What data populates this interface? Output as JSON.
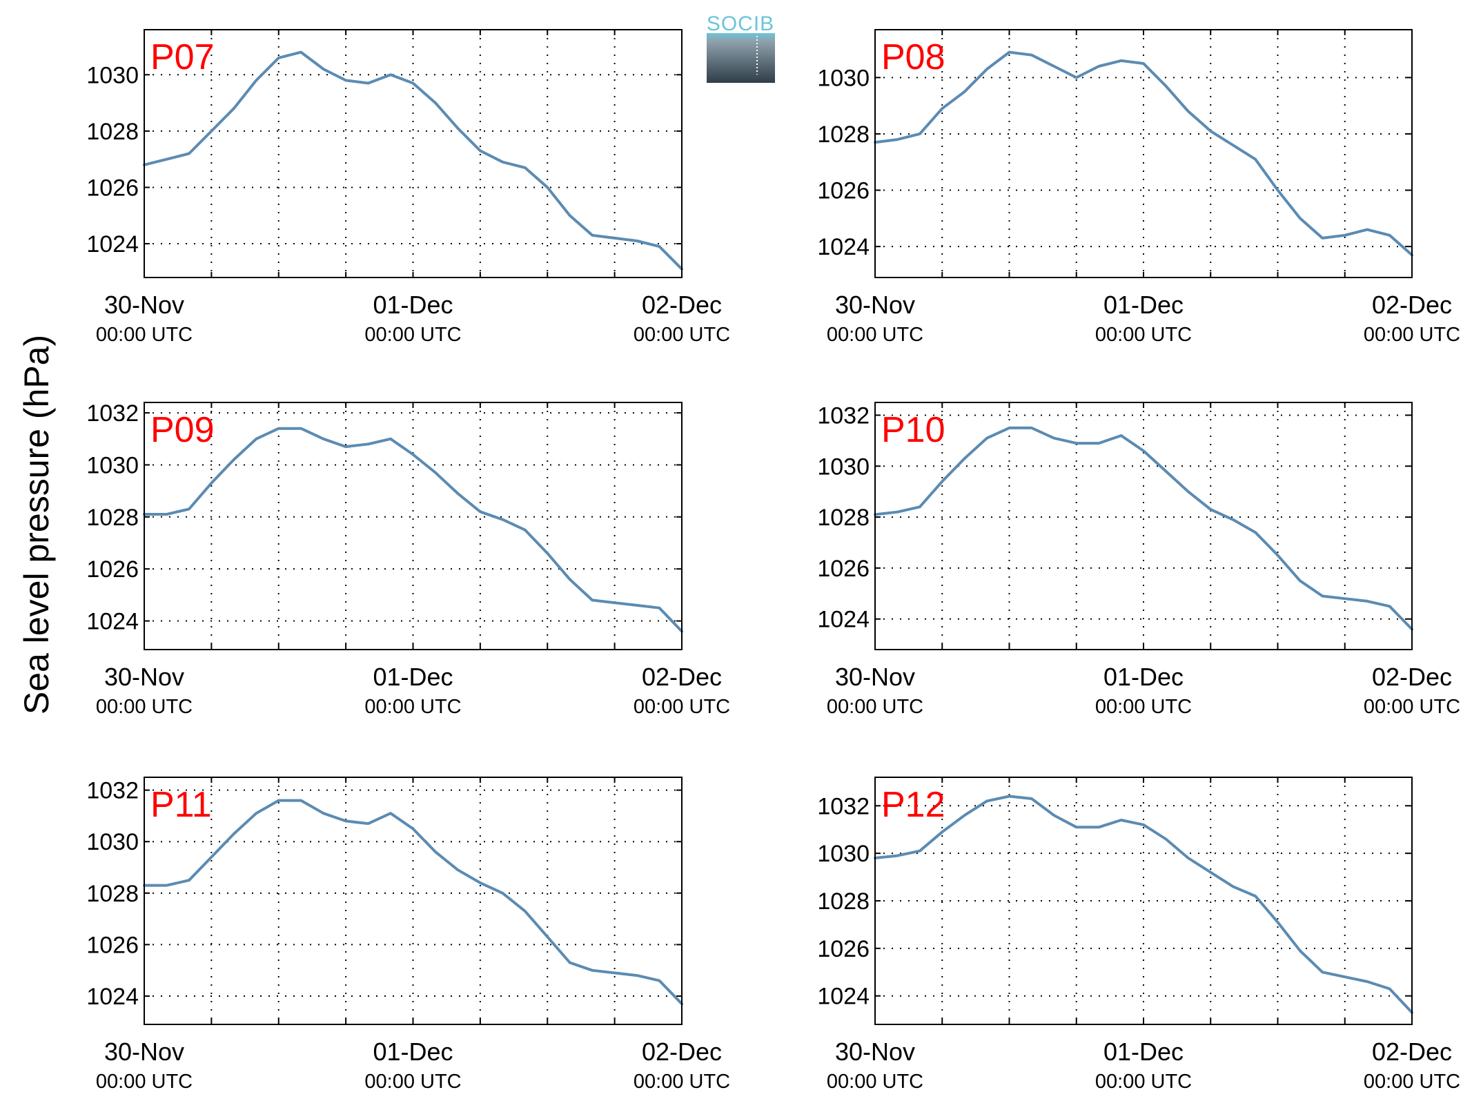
{
  "figure": {
    "ylabel": "Sea level pressure (hPa)",
    "logo_text": "SOCIB"
  },
  "x_axis": {
    "tick_labels": [
      {
        "date": "30-Nov",
        "time": "00:00 UTC"
      },
      {
        "date": "01-Dec",
        "time": "00:00 UTC"
      },
      {
        "date": "02-Dec",
        "time": "00:00 UTC"
      }
    ]
  },
  "colors": {
    "line": "#5b8bb2",
    "panel_label": "#ff0000",
    "grid": "#000000",
    "logo_top": "#6cc4d8",
    "logo_bottom": "#2f3d48"
  },
  "chart_data": [
    {
      "type": "line",
      "title": "P07",
      "x": [
        "2013-11-30T00:00",
        "2013-11-30T02:00",
        "2013-11-30T04:00",
        "2013-11-30T06:00",
        "2013-11-30T08:00",
        "2013-11-30T10:00",
        "2013-11-30T12:00",
        "2013-11-30T14:00",
        "2013-11-30T16:00",
        "2013-11-30T18:00",
        "2013-11-30T20:00",
        "2013-11-30T22:00",
        "2013-12-01T00:00",
        "2013-12-01T02:00",
        "2013-12-01T04:00",
        "2013-12-01T06:00",
        "2013-12-01T08:00",
        "2013-12-01T10:00",
        "2013-12-01T12:00",
        "2013-12-01T14:00",
        "2013-12-01T16:00",
        "2013-12-01T18:00",
        "2013-12-01T20:00",
        "2013-12-01T22:00",
        "2013-12-02T00:00"
      ],
      "values": [
        1026.8,
        1027.0,
        1027.2,
        1028.0,
        1028.8,
        1029.8,
        1030.6,
        1030.8,
        1030.2,
        1029.8,
        1029.7,
        1030.0,
        1029.7,
        1029.0,
        1028.1,
        1027.3,
        1026.9,
        1026.7,
        1026.0,
        1025.0,
        1024.3,
        1024.2,
        1024.1,
        1023.9,
        1023.1
      ],
      "ylim": [
        1022.8,
        1031.6
      ],
      "yticks": [
        1024,
        1026,
        1028,
        1030
      ]
    },
    {
      "type": "line",
      "title": "P08",
      "x": [
        "2013-11-30T00:00",
        "2013-11-30T02:00",
        "2013-11-30T04:00",
        "2013-11-30T06:00",
        "2013-11-30T08:00",
        "2013-11-30T10:00",
        "2013-11-30T12:00",
        "2013-11-30T14:00",
        "2013-11-30T16:00",
        "2013-11-30T18:00",
        "2013-11-30T20:00",
        "2013-11-30T22:00",
        "2013-12-01T00:00",
        "2013-12-01T02:00",
        "2013-12-01T04:00",
        "2013-12-01T06:00",
        "2013-12-01T08:00",
        "2013-12-01T10:00",
        "2013-12-01T12:00",
        "2013-12-01T14:00",
        "2013-12-01T16:00",
        "2013-12-01T18:00",
        "2013-12-01T20:00",
        "2013-12-01T22:00",
        "2013-12-02T00:00"
      ],
      "values": [
        1027.7,
        1027.8,
        1028.0,
        1028.9,
        1029.5,
        1030.3,
        1030.9,
        1030.8,
        1030.4,
        1030.0,
        1030.4,
        1030.6,
        1030.5,
        1029.7,
        1028.8,
        1028.1,
        1027.6,
        1027.1,
        1026.0,
        1025.0,
        1024.3,
        1024.4,
        1024.6,
        1024.4,
        1023.7
      ],
      "ylim": [
        1022.9,
        1031.7
      ],
      "yticks": [
        1024,
        1026,
        1028,
        1030
      ]
    },
    {
      "type": "line",
      "title": "P09",
      "x": [
        "2013-11-30T00:00",
        "2013-11-30T02:00",
        "2013-11-30T04:00",
        "2013-11-30T06:00",
        "2013-11-30T08:00",
        "2013-11-30T10:00",
        "2013-11-30T12:00",
        "2013-11-30T14:00",
        "2013-11-30T16:00",
        "2013-11-30T18:00",
        "2013-11-30T20:00",
        "2013-11-30T22:00",
        "2013-12-01T00:00",
        "2013-12-01T02:00",
        "2013-12-01T04:00",
        "2013-12-01T06:00",
        "2013-12-01T08:00",
        "2013-12-01T10:00",
        "2013-12-01T12:00",
        "2013-12-01T14:00",
        "2013-12-01T16:00",
        "2013-12-01T18:00",
        "2013-12-01T20:00",
        "2013-12-01T22:00",
        "2013-12-02T00:00"
      ],
      "values": [
        1028.1,
        1028.1,
        1028.3,
        1029.3,
        1030.2,
        1031.0,
        1031.4,
        1031.4,
        1031.0,
        1030.7,
        1030.8,
        1031.0,
        1030.4,
        1029.7,
        1028.9,
        1028.2,
        1027.9,
        1027.5,
        1026.6,
        1025.6,
        1024.8,
        1024.7,
        1024.6,
        1024.5,
        1023.6
      ],
      "ylim": [
        1022.9,
        1032.4
      ],
      "yticks": [
        1024,
        1026,
        1028,
        1030,
        1032
      ]
    },
    {
      "type": "line",
      "title": "P10",
      "x": [
        "2013-11-30T00:00",
        "2013-11-30T02:00",
        "2013-11-30T04:00",
        "2013-11-30T06:00",
        "2013-11-30T08:00",
        "2013-11-30T10:00",
        "2013-11-30T12:00",
        "2013-11-30T14:00",
        "2013-11-30T16:00",
        "2013-11-30T18:00",
        "2013-11-30T20:00",
        "2013-11-30T22:00",
        "2013-12-01T00:00",
        "2013-12-01T02:00",
        "2013-12-01T04:00",
        "2013-12-01T06:00",
        "2013-12-01T08:00",
        "2013-12-01T10:00",
        "2013-12-01T12:00",
        "2013-12-01T14:00",
        "2013-12-01T16:00",
        "2013-12-01T18:00",
        "2013-12-01T20:00",
        "2013-12-01T22:00",
        "2013-12-02T00:00"
      ],
      "values": [
        1028.1,
        1028.2,
        1028.4,
        1029.4,
        1030.3,
        1031.1,
        1031.5,
        1031.5,
        1031.1,
        1030.9,
        1030.9,
        1031.2,
        1030.6,
        1029.8,
        1029.0,
        1028.3,
        1027.9,
        1027.4,
        1026.5,
        1025.5,
        1024.9,
        1024.8,
        1024.7,
        1024.5,
        1023.6
      ],
      "ylim": [
        1022.8,
        1032.5
      ],
      "yticks": [
        1024,
        1026,
        1028,
        1030,
        1032
      ]
    },
    {
      "type": "line",
      "title": "P11",
      "x": [
        "2013-11-30T00:00",
        "2013-11-30T02:00",
        "2013-11-30T04:00",
        "2013-11-30T06:00",
        "2013-11-30T08:00",
        "2013-11-30T10:00",
        "2013-11-30T12:00",
        "2013-11-30T14:00",
        "2013-11-30T16:00",
        "2013-11-30T18:00",
        "2013-11-30T20:00",
        "2013-11-30T22:00",
        "2013-12-01T00:00",
        "2013-12-01T02:00",
        "2013-12-01T04:00",
        "2013-12-01T06:00",
        "2013-12-01T08:00",
        "2013-12-01T10:00",
        "2013-12-01T12:00",
        "2013-12-01T14:00",
        "2013-12-01T16:00",
        "2013-12-01T18:00",
        "2013-12-01T20:00",
        "2013-12-01T22:00",
        "2013-12-02T00:00"
      ],
      "values": [
        1028.3,
        1028.3,
        1028.5,
        1029.4,
        1030.3,
        1031.1,
        1031.6,
        1031.6,
        1031.1,
        1030.8,
        1030.7,
        1031.1,
        1030.5,
        1029.6,
        1028.9,
        1028.4,
        1028.0,
        1027.3,
        1026.3,
        1025.3,
        1025.0,
        1024.9,
        1024.8,
        1024.6,
        1023.7
      ],
      "ylim": [
        1022.9,
        1032.5
      ],
      "yticks": [
        1024,
        1026,
        1028,
        1030,
        1032
      ]
    },
    {
      "type": "line",
      "title": "P12",
      "x": [
        "2013-11-30T00:00",
        "2013-11-30T02:00",
        "2013-11-30T04:00",
        "2013-11-30T06:00",
        "2013-11-30T08:00",
        "2013-11-30T10:00",
        "2013-11-30T12:00",
        "2013-11-30T14:00",
        "2013-11-30T16:00",
        "2013-11-30T18:00",
        "2013-11-30T20:00",
        "2013-11-30T22:00",
        "2013-12-01T00:00",
        "2013-12-01T02:00",
        "2013-12-01T04:00",
        "2013-12-01T06:00",
        "2013-12-01T08:00",
        "2013-12-01T10:00",
        "2013-12-01T12:00",
        "2013-12-01T14:00",
        "2013-12-01T16:00",
        "2013-12-01T18:00",
        "2013-12-01T20:00",
        "2013-12-01T22:00",
        "2013-12-02T00:00"
      ],
      "values": [
        1029.8,
        1029.9,
        1030.1,
        1030.9,
        1031.6,
        1032.2,
        1032.4,
        1032.3,
        1031.6,
        1031.1,
        1031.1,
        1031.4,
        1031.2,
        1030.6,
        1029.8,
        1029.2,
        1028.6,
        1028.2,
        1027.1,
        1025.9,
        1025.0,
        1024.8,
        1024.6,
        1024.3,
        1023.3
      ],
      "ylim": [
        1022.8,
        1033.2
      ],
      "yticks": [
        1024,
        1026,
        1028,
        1030,
        1032
      ]
    }
  ]
}
